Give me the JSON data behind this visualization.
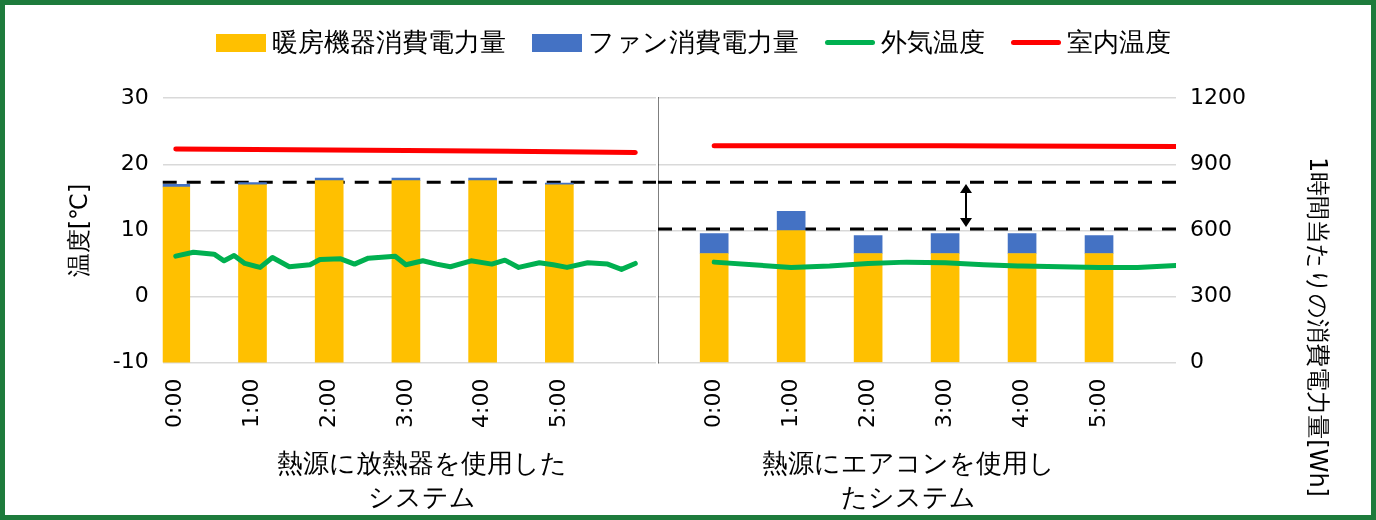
{
  "chart_data": [
    {
      "type": "bar",
      "xlabel": "熱源に放熱器を使用したシステム",
      "ylabel": "温度[℃]",
      "stacked": true,
      "grid": "y",
      "legend": "top",
      "xlim": [
        -0.17,
        6.26
      ],
      "xticks": [
        {
          "value": 0,
          "label": "0:00"
        },
        {
          "value": 1,
          "label": "1:00"
        },
        {
          "value": 2,
          "label": "2:00"
        },
        {
          "value": 3,
          "label": "3:00"
        },
        {
          "value": 4,
          "label": "4:00"
        },
        {
          "value": 5,
          "label": "5:00"
        }
      ],
      "ylim": [
        -10,
        30
      ],
      "yticks": [
        -10,
        0,
        10,
        20,
        30
      ],
      "y2lim": [
        0,
        1200
      ],
      "series": [
        {
          "name": "暖房機器消費電力量",
          "type": "bar",
          "axis": "y2",
          "color": "#ffc000",
          "x": [
            0,
            1,
            2,
            3,
            4,
            5
          ],
          "values": [
            797,
            807,
            826,
            826,
            826,
            807
          ]
        },
        {
          "name": "ファン消費電力量",
          "type": "bar",
          "axis": "y2",
          "color": "#4472c4",
          "x": [
            0,
            1,
            2,
            3,
            4,
            5
          ],
          "values": [
            12,
            10,
            12,
            12,
            12,
            8
          ]
        },
        {
          "name": "外気温度",
          "type": "line",
          "color": "#00b050",
          "x": [
            0,
            0.23,
            0.5,
            0.63,
            0.76,
            0.9,
            1.1,
            1.26,
            1.48,
            1.75,
            1.88,
            2.15,
            2.33,
            2.51,
            2.86,
            3.0,
            3.22,
            3.4,
            3.58,
            3.85,
            4.12,
            4.29,
            4.47,
            4.74,
            4.92,
            5.1,
            5.37,
            5.63,
            5.81,
            5.99
          ],
          "values": [
            6.1,
            6.7,
            6.4,
            5.4,
            6.2,
            5.0,
            4.4,
            5.9,
            4.5,
            4.8,
            5.6,
            5.7,
            4.9,
            5.8,
            6.1,
            4.8,
            5.4,
            4.9,
            4.5,
            5.4,
            4.9,
            5.5,
            4.4,
            5.1,
            4.8,
            4.4,
            5.1,
            4.9,
            4.1,
            5.0
          ]
        },
        {
          "name": "室内温度",
          "type": "line",
          "color": "#ff0000",
          "x": [
            0,
            3,
            5.99
          ],
          "values": [
            22.3,
            22.1,
            21.8
          ]
        }
      ],
      "ref_lines": [
        {
          "axis": "y",
          "value": 17.3,
          "color": "#000000",
          "line_style": "dashed"
        }
      ]
    },
    {
      "type": "bar",
      "xlabel": "熱源にエアコンを使用したシステム",
      "y2label": "1時間当たりの消費電力量[Wh]",
      "stacked": true,
      "grid": "y",
      "xlim": [
        -0.73,
        6.0
      ],
      "xticks": [
        {
          "value": 0,
          "label": "0:00"
        },
        {
          "value": 1,
          "label": "1:00"
        },
        {
          "value": 2,
          "label": "2:00"
        },
        {
          "value": 3,
          "label": "3:00"
        },
        {
          "value": 4,
          "label": "4:00"
        },
        {
          "value": 5,
          "label": "5:00"
        }
      ],
      "ylim": [
        -10,
        30
      ],
      "y2lim": [
        0,
        1200
      ],
      "y2ticks": [
        0,
        300,
        600,
        900,
        1200
      ],
      "series": [
        {
          "type": "bar",
          "axis": "y2",
          "color": "#ffc000",
          "x": [
            0,
            1,
            2,
            3,
            4,
            5
          ],
          "values": [
            495,
            599,
            495,
            495,
            495,
            495
          ]
        },
        {
          "type": "bar",
          "axis": "y2",
          "color": "#4472c4",
          "x": [
            0,
            1,
            2,
            3,
            4,
            5
          ],
          "values": [
            91,
            88,
            82,
            91,
            91,
            82
          ]
        },
        {
          "type": "line",
          "color": "#00b050",
          "x": [
            0,
            0.5,
            1.0,
            1.5,
            2.0,
            2.5,
            3.0,
            3.5,
            4.0,
            4.5,
            5.0,
            5.5,
            6.0
          ],
          "values": [
            5.2,
            4.8,
            4.4,
            4.6,
            5.0,
            5.2,
            5.1,
            4.8,
            4.6,
            4.5,
            4.4,
            4.4,
            4.7
          ]
        },
        {
          "type": "line",
          "color": "#ff0000",
          "x": [
            0,
            3,
            6.0
          ],
          "values": [
            22.8,
            22.8,
            22.7
          ]
        }
      ],
      "ref_lines": [
        {
          "axis": "y",
          "value": 17.3,
          "color": "#000000",
          "line_style": "dashed"
        },
        {
          "axis": "y",
          "value": 10.2,
          "color": "#000000",
          "line_style": "dashed"
        }
      ]
    }
  ]
}
